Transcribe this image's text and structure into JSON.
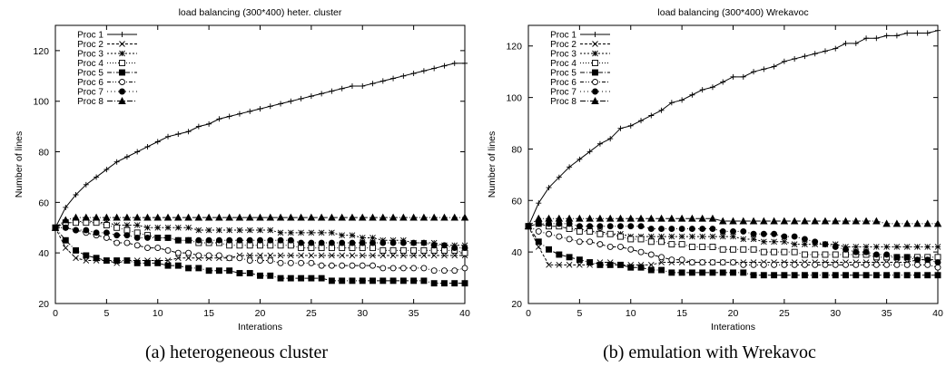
{
  "figures": [
    {
      "caption": "(a)  heterogeneous cluster"
    },
    {
      "caption": "(b)  emulation with Wrekavoc"
    }
  ],
  "chart_data": [
    {
      "type": "line",
      "title": "load balancing (300*400) heter. cluster",
      "xlabel": "Interations",
      "ylabel": "Number of lines",
      "xlim": [
        0,
        40
      ],
      "ylim": [
        20,
        130
      ],
      "xticks": [
        0,
        5,
        10,
        15,
        20,
        25,
        30,
        35,
        40
      ],
      "yticks": [
        20,
        40,
        60,
        80,
        100,
        120
      ],
      "grid": false,
      "legend_position": "top-left",
      "x": [
        0,
        1,
        2,
        3,
        4,
        5,
        6,
        7,
        8,
        9,
        10,
        11,
        12,
        13,
        14,
        15,
        16,
        17,
        18,
        19,
        20,
        21,
        22,
        23,
        24,
        25,
        26,
        27,
        28,
        29,
        30,
        31,
        32,
        33,
        34,
        35,
        36,
        37,
        38,
        39,
        40
      ],
      "series": [
        {
          "name": "Proc 1",
          "marker": "plus",
          "values": [
            50,
            58,
            63,
            67,
            70,
            73,
            76,
            78,
            80,
            82,
            84,
            86,
            87,
            88,
            90,
            91,
            93,
            94,
            95,
            96,
            97,
            98,
            99,
            100,
            101,
            102,
            103,
            104,
            105,
            106,
            106,
            107,
            108,
            109,
            110,
            111,
            112,
            113,
            114,
            115,
            115
          ]
        },
        {
          "name": "Proc 2",
          "marker": "cross",
          "values": [
            50,
            42,
            38,
            37,
            37,
            37,
            36,
            37,
            37,
            37,
            37,
            37,
            38,
            38,
            38,
            38,
            38,
            38,
            39,
            39,
            39,
            39,
            39,
            39,
            39,
            39,
            39,
            39,
            39,
            39,
            39,
            39,
            39,
            39,
            39,
            39,
            39,
            39,
            39,
            39,
            39
          ]
        },
        {
          "name": "Proc 3",
          "marker": "star",
          "values": [
            50,
            52,
            52,
            53,
            52,
            52,
            51,
            51,
            51,
            50,
            50,
            50,
            50,
            50,
            49,
            49,
            49,
            49,
            49,
            49,
            49,
            49,
            48,
            48,
            48,
            48,
            48,
            48,
            47,
            47,
            46,
            46,
            45,
            45,
            45,
            44,
            44,
            44,
            43,
            43,
            43
          ]
        },
        {
          "name": "Proc 4",
          "marker": "square-open",
          "values": [
            50,
            52,
            52,
            52,
            52,
            51,
            50,
            49,
            48,
            47,
            46,
            46,
            45,
            45,
            44,
            44,
            44,
            43,
            43,
            43,
            43,
            43,
            43,
            43,
            42,
            42,
            42,
            42,
            42,
            42,
            42,
            42,
            41,
            41,
            41,
            41,
            41,
            41,
            41,
            41,
            40
          ]
        },
        {
          "name": "Proc 5",
          "marker": "square-filled",
          "values": [
            50,
            45,
            41,
            39,
            38,
            37,
            37,
            37,
            36,
            36,
            36,
            35,
            35,
            34,
            34,
            33,
            33,
            33,
            32,
            32,
            31,
            31,
            30,
            30,
            30,
            30,
            30,
            29,
            29,
            29,
            29,
            29,
            29,
            29,
            29,
            29,
            29,
            28,
            28,
            28,
            28
          ]
        },
        {
          "name": "Proc 6",
          "marker": "circle-open",
          "values": [
            50,
            50,
            49,
            48,
            47,
            46,
            44,
            44,
            43,
            42,
            42,
            41,
            40,
            40,
            39,
            39,
            39,
            38,
            38,
            37,
            37,
            37,
            36,
            36,
            36,
            36,
            35,
            35,
            35,
            35,
            35,
            35,
            34,
            34,
            34,
            34,
            34,
            33,
            33,
            33,
            34
          ]
        },
        {
          "name": "Proc 7",
          "marker": "circle-filled",
          "values": [
            50,
            50,
            49,
            49,
            48,
            48,
            47,
            47,
            46,
            46,
            46,
            46,
            45,
            45,
            45,
            45,
            45,
            45,
            45,
            45,
            45,
            45,
            45,
            45,
            44,
            44,
            44,
            44,
            44,
            44,
            44,
            44,
            44,
            44,
            44,
            44,
            44,
            43,
            43,
            42,
            42
          ]
        },
        {
          "name": "Proc 8",
          "marker": "triangle",
          "values": [
            50,
            53,
            54,
            54,
            54,
            54,
            54,
            54,
            54,
            54,
            54,
            54,
            54,
            54,
            54,
            54,
            54,
            54,
            54,
            54,
            54,
            54,
            54,
            54,
            54,
            54,
            54,
            54,
            54,
            54,
            54,
            54,
            54,
            54,
            54,
            54,
            54,
            54,
            54,
            54,
            54
          ]
        }
      ]
    },
    {
      "type": "line",
      "title": "load balancing (300*400) Wrekavoc",
      "xlabel": "Interations",
      "ylabel": "Number of lines",
      "xlim": [
        0,
        40
      ],
      "ylim": [
        20,
        128
      ],
      "xticks": [
        0,
        5,
        10,
        15,
        20,
        25,
        30,
        35,
        40
      ],
      "yticks": [
        20,
        40,
        60,
        80,
        100,
        120
      ],
      "grid": false,
      "legend_position": "top-left",
      "x": [
        0,
        1,
        2,
        3,
        4,
        5,
        6,
        7,
        8,
        9,
        10,
        11,
        12,
        13,
        14,
        15,
        16,
        17,
        18,
        19,
        20,
        21,
        22,
        23,
        24,
        25,
        26,
        27,
        28,
        29,
        30,
        31,
        32,
        33,
        34,
        35,
        36,
        37,
        38,
        39,
        40
      ],
      "series": [
        {
          "name": "Proc 1",
          "marker": "plus",
          "values": [
            50,
            59,
            65,
            69,
            73,
            76,
            79,
            82,
            84,
            88,
            89,
            91,
            93,
            95,
            98,
            99,
            101,
            103,
            104,
            106,
            108,
            108,
            110,
            111,
            112,
            114,
            115,
            116,
            117,
            118,
            119,
            121,
            121,
            123,
            123,
            124,
            124,
            125,
            125,
            125,
            126
          ]
        },
        {
          "name": "Proc 2",
          "marker": "cross",
          "values": [
            50,
            42,
            35,
            35,
            35,
            35,
            35,
            36,
            36,
            35,
            35,
            35,
            35,
            36,
            36,
            36,
            36,
            36,
            36,
            36,
            36,
            36,
            36,
            36,
            36,
            36,
            36,
            36,
            36,
            36,
            36,
            36,
            36,
            36,
            36,
            36,
            36,
            36,
            37,
            37,
            37
          ]
        },
        {
          "name": "Proc 3",
          "marker": "star",
          "values": [
            50,
            51,
            50,
            50,
            49,
            49,
            48,
            48,
            47,
            47,
            46,
            46,
            46,
            46,
            46,
            46,
            46,
            46,
            46,
            46,
            46,
            45,
            45,
            44,
            44,
            44,
            43,
            43,
            43,
            43,
            43,
            42,
            42,
            42,
            42,
            42,
            42,
            42,
            42,
            42,
            42
          ]
        },
        {
          "name": "Proc 4",
          "marker": "square-open",
          "values": [
            50,
            51,
            50,
            50,
            49,
            48,
            48,
            47,
            47,
            46,
            45,
            45,
            44,
            44,
            43,
            43,
            42,
            42,
            42,
            41,
            41,
            41,
            41,
            40,
            40,
            40,
            40,
            39,
            39,
            39,
            39,
            39,
            39,
            39,
            38,
            38,
            38,
            38,
            38,
            38,
            38
          ]
        },
        {
          "name": "Proc 5",
          "marker": "square-filled",
          "values": [
            50,
            44,
            41,
            39,
            38,
            37,
            36,
            35,
            35,
            35,
            34,
            34,
            33,
            33,
            32,
            32,
            32,
            32,
            32,
            32,
            32,
            32,
            31,
            31,
            31,
            31,
            31,
            31,
            31,
            31,
            31,
            31,
            31,
            31,
            31,
            31,
            31,
            31,
            31,
            31,
            31
          ]
        },
        {
          "name": "Proc 6",
          "marker": "circle-open",
          "values": [
            50,
            48,
            47,
            46,
            45,
            44,
            44,
            43,
            42,
            42,
            41,
            40,
            39,
            38,
            37,
            37,
            36,
            36,
            36,
            36,
            36,
            35,
            35,
            35,
            35,
            35,
            35,
            35,
            35,
            35,
            35,
            35,
            35,
            35,
            35,
            35,
            35,
            35,
            35,
            35,
            34
          ]
        },
        {
          "name": "Proc 7",
          "marker": "circle-filled",
          "values": [
            50,
            51,
            51,
            51,
            51,
            50,
            50,
            50,
            50,
            50,
            50,
            50,
            49,
            49,
            49,
            49,
            49,
            49,
            49,
            48,
            48,
            48,
            47,
            47,
            47,
            46,
            46,
            45,
            44,
            43,
            42,
            41,
            40,
            40,
            39,
            39,
            38,
            38,
            37,
            37,
            36
          ]
        },
        {
          "name": "Proc 8",
          "marker": "triangle",
          "values": [
            50,
            53,
            53,
            53,
            53,
            53,
            53,
            53,
            53,
            53,
            53,
            53,
            53,
            53,
            53,
            53,
            53,
            53,
            53,
            52,
            52,
            52,
            52,
            52,
            52,
            52,
            52,
            52,
            52,
            52,
            52,
            52,
            52,
            52,
            52,
            51,
            51,
            51,
            51,
            51,
            51
          ]
        }
      ]
    }
  ]
}
